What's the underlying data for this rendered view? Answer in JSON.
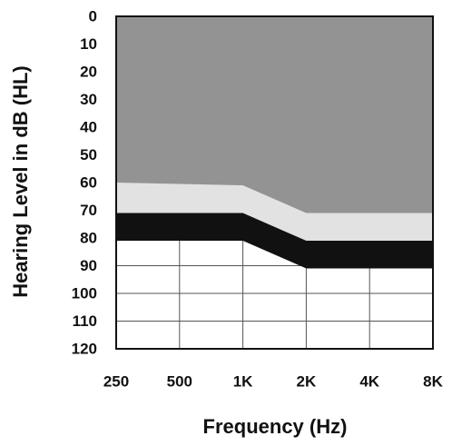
{
  "chart_data": {
    "type": "area",
    "x_label": "Frequency (Hz)",
    "y_label": "Hearing Level in dB (HL)",
    "categories": [
      "250",
      "500",
      "1K",
      "2K",
      "4K",
      "8K"
    ],
    "ylim": [
      0,
      120
    ],
    "yticks": [
      0,
      10,
      20,
      30,
      40,
      50,
      60,
      70,
      80,
      90,
      100,
      110,
      120
    ],
    "y_inverted": true,
    "grid": true,
    "series": [
      {
        "color": "#939393",
        "values": [
          60,
          60.5,
          61,
          71,
          71,
          71
        ]
      },
      {
        "color": "#e2e2e2",
        "values": [
          71,
          71,
          71,
          81,
          81,
          81
        ]
      },
      {
        "color": "#111111",
        "values": [
          81,
          81,
          81,
          91,
          91,
          91
        ]
      }
    ]
  }
}
